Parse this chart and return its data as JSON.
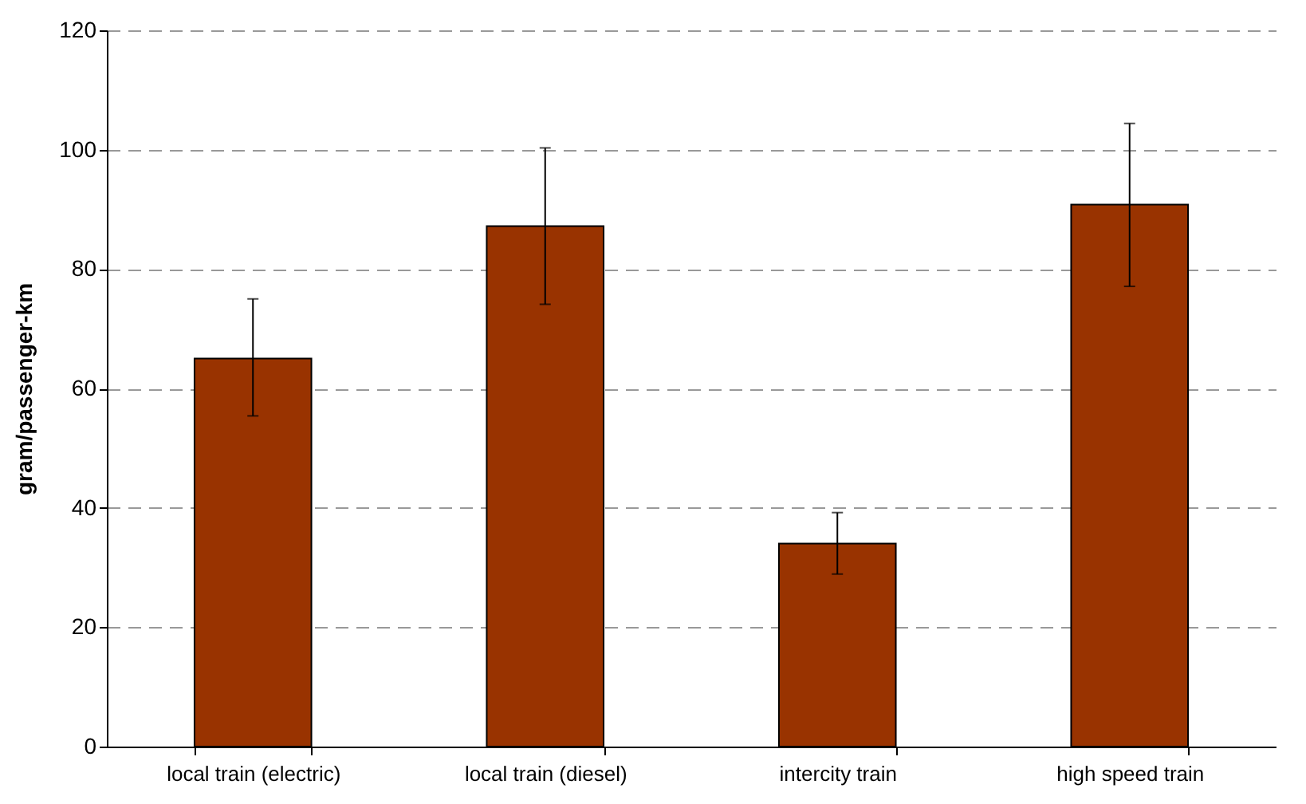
{
  "chart_data": {
    "type": "bar",
    "ylabel": "gram/passenger-km",
    "categories": [
      "local train (electric)",
      "local train (diesel)",
      "intercity train",
      "high speed train"
    ],
    "values": [
      65,
      87.2,
      34,
      90.8
    ],
    "color": "#993300",
    "errors": [
      [
        55.4,
        75
      ],
      [
        74.1,
        100.3
      ],
      [
        28.9,
        39.2
      ],
      [
        77.1,
        104.4
      ]
    ],
    "ylim": [
      0,
      120
    ],
    "yticks": [
      0,
      20,
      40,
      60,
      80,
      100,
      120
    ],
    "grid": "y"
  }
}
